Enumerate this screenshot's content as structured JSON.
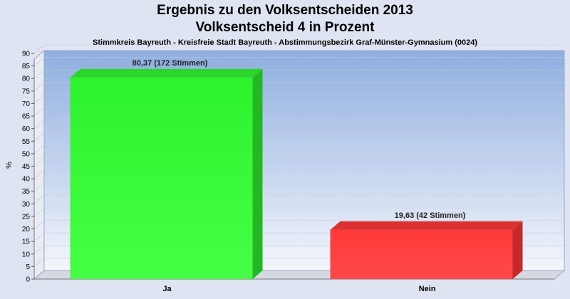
{
  "header": {
    "title_line1": "Ergebnis zu den Volksentscheiden 2013",
    "title_line2": "Volksentscheid 4 in Prozent",
    "subtitle": "Stimmkreis Bayreuth - Kreisfreie Stadt Bayreuth - Abstimmungsbezirk Graf-Münster-Gymnasium (0024)"
  },
  "chart_data": {
    "type": "bar",
    "title": "Ergebnis zu den Volksentscheiden 2013 — Volksentscheid 4 in Prozent",
    "ylabel": "%",
    "xlabel": "",
    "ylim": [
      0,
      90
    ],
    "yticks": [
      0,
      5,
      10,
      15,
      20,
      25,
      30,
      35,
      40,
      45,
      50,
      55,
      60,
      65,
      70,
      75,
      80,
      85,
      90
    ],
    "categories": [
      "Ja",
      "Nein"
    ],
    "values": [
      80.37,
      19.63
    ],
    "data_labels": [
      "80,37 (172 Stimmen)",
      "19,63 (42 Stimmen)"
    ],
    "colors": [
      "#33ff33",
      "#ff3333"
    ],
    "grid": true,
    "style": "3d"
  }
}
